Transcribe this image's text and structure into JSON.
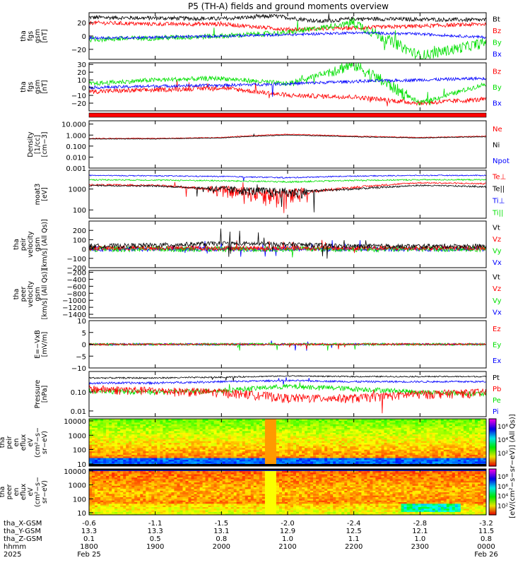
{
  "title": "P5 (TH-A) fields and ground moments overview",
  "colors": {
    "black": "#000000",
    "red": "#ff0000",
    "green": "#00e000",
    "blue": "#0000ff"
  },
  "panels": [
    {
      "id": "fgs1",
      "ylabel": [
        "tha",
        "fgs",
        "gsm",
        "[nT]"
      ],
      "ticks": [
        "20",
        "0",
        "−20"
      ],
      "legend": [
        {
          "text": "Bt",
          "color": "black"
        },
        {
          "text": "Bz",
          "color": "red"
        },
        {
          "text": "By",
          "color": "green"
        },
        {
          "text": "Bx",
          "color": "blue"
        }
      ]
    },
    {
      "id": "fgs2",
      "ylabel": [
        "tha",
        "fgs",
        "gsm",
        "[nT]"
      ],
      "ticks": [
        "30",
        "20",
        "10",
        "0",
        "−10",
        "−20"
      ],
      "legend": [
        {
          "text": "Bz",
          "color": "red"
        },
        {
          "text": "By",
          "color": "green"
        },
        {
          "text": "Bx",
          "color": "blue"
        }
      ]
    },
    {
      "id": "density",
      "ylabel": [
        "Density",
        "[1/cc]",
        "[cm−3]"
      ],
      "ticks": [
        "10.000",
        "1.000",
        "0.100",
        "0.010",
        "0.001"
      ],
      "legend": [
        {
          "text": "Ne",
          "color": "red"
        },
        {
          "text": "Ni",
          "color": "black"
        },
        {
          "text": "Npot",
          "color": "blue"
        }
      ]
    },
    {
      "id": "temp",
      "ylabel": [
        "moat3",
        "[eV]"
      ],
      "ticks": [
        "1000",
        "100"
      ],
      "legend": [
        {
          "text": "Te⊥",
          "color": "red"
        },
        {
          "text": "Te||",
          "color": "black"
        },
        {
          "text": "Ti⊥",
          "color": "blue"
        },
        {
          "text": "Ti||",
          "color": "green"
        }
      ]
    },
    {
      "id": "vel1",
      "ylabel": [
        "tha",
        "peir",
        "velocity",
        "gsm",
        "[km/s] (All Qs)]"
      ],
      "ticks": [
        "200",
        "100",
        "0",
        "−100",
        "−200"
      ],
      "legend": [
        {
          "text": "Vt",
          "color": "black"
        },
        {
          "text": "Vz",
          "color": "red"
        },
        {
          "text": "Vy",
          "color": "green"
        },
        {
          "text": "Vx",
          "color": "blue"
        }
      ]
    },
    {
      "id": "vel2",
      "ylabel": [
        "tha",
        "peer",
        "velocity",
        "gsm",
        "[km/s] (All Qs)]"
      ],
      "ticks": [
        "−200",
        "−400",
        "−600",
        "−800",
        "−1000",
        "−1200",
        "−1400"
      ],
      "legend": [
        {
          "text": "Vt",
          "color": "black"
        },
        {
          "text": "Vz",
          "color": "red"
        },
        {
          "text": "Vy",
          "color": "green"
        },
        {
          "text": "Vx",
          "color": "blue"
        }
      ]
    },
    {
      "id": "efield",
      "ylabel": [
        "E=−VxB",
        "[mV/m]"
      ],
      "ticks": [
        "10",
        "5",
        "0",
        "−5",
        "−10"
      ],
      "legend": [
        {
          "text": "Ez",
          "color": "red"
        },
        {
          "text": "Ey",
          "color": "green"
        },
        {
          "text": "Ex",
          "color": "blue"
        }
      ]
    },
    {
      "id": "pressure",
      "ylabel": [
        "Pressure",
        "[nPa]"
      ],
      "ticks": [
        "0.10",
        "0.01"
      ],
      "legend": [
        {
          "text": "Pt",
          "color": "black"
        },
        {
          "text": "Pb",
          "color": "red"
        },
        {
          "text": "Pe",
          "color": "green"
        },
        {
          "text": "Pi",
          "color": "blue"
        }
      ]
    },
    {
      "id": "peir_en",
      "ylabel": [
        "tha",
        "peir",
        "en",
        "eflux",
        "eV",
        "(cm²−s−",
        "sr−eV)"
      ],
      "ticks": [
        "10000",
        "1000",
        "100",
        "10"
      ]
    },
    {
      "id": "peer_en",
      "ylabel": [
        "tha",
        "peer",
        "en",
        "eflux",
        "eV",
        "(cm²−s−",
        "sr−eV)"
      ],
      "ticks": [
        "10000",
        "1000",
        "100",
        "10"
      ]
    }
  ],
  "colorbar": {
    "label": "[eV/(cm²−s−sr−eV)] (All Qs)]",
    "ticks_top": [
      "10⁶",
      "10⁴",
      "10²"
    ],
    "ticks_bottom": [
      "10⁸",
      "10⁶",
      "10⁴",
      "10²"
    ]
  },
  "footer": {
    "row_labels": [
      "tha_X-GSM",
      "tha_Y-GSM",
      "tha_Z-GSM",
      "hhmm",
      "2025"
    ],
    "columns": [
      {
        "x": "-0.6",
        "y": "13.3",
        "z": "0.1",
        "t": "1800",
        "d": "Feb 25"
      },
      {
        "x": "-1.1",
        "y": "13.3",
        "z": "0.5",
        "t": "1900",
        "d": ""
      },
      {
        "x": "-1.5",
        "y": "13.1",
        "z": "0.8",
        "t": "2000",
        "d": ""
      },
      {
        "x": "-2.0",
        "y": "12.9",
        "z": "1.0",
        "t": "2100",
        "d": ""
      },
      {
        "x": "-2.4",
        "y": "12.5",
        "z": "1.1",
        "t": "2200",
        "d": ""
      },
      {
        "x": "-2.8",
        "y": "12.1",
        "z": "1.0",
        "t": "2300",
        "d": ""
      },
      {
        "x": "-3.2",
        "y": "11.5",
        "z": "0.8",
        "t": "0000",
        "d": "Feb 26"
      }
    ]
  },
  "chart_data": {
    "type": "line",
    "title": "P5 (TH-A) fields and ground moments overview",
    "x_time_range": [
      "2025-02-25 18:00",
      "2025-02-26 00:00"
    ],
    "panels": [
      {
        "name": "tha fgs gsm [nT]",
        "ylim": [
          -35,
          35
        ],
        "series": [
          {
            "name": "Bt",
            "approx": [
              [
                18.0,
                28
              ],
              [
                19.0,
                27
              ],
              [
                20.0,
                26
              ],
              [
                20.8,
                30
              ],
              [
                21.5,
                22
              ],
              [
                22.0,
                26
              ],
              [
                23.0,
                25
              ],
              [
                24.0,
                24
              ]
            ]
          },
          {
            "name": "Bz",
            "approx": [
              [
                18.0,
                20
              ],
              [
                19.0,
                18
              ],
              [
                20.0,
                18
              ],
              [
                21.0,
                10
              ],
              [
                22.0,
                12
              ],
              [
                23.0,
                15
              ],
              [
                24.0,
                18
              ]
            ]
          },
          {
            "name": "By",
            "approx": [
              [
                18.0,
                -5
              ],
              [
                19.0,
                -3
              ],
              [
                20.0,
                0
              ],
              [
                21.0,
                5
              ],
              [
                22.0,
                20
              ],
              [
                22.6,
                -10
              ],
              [
                23.0,
                -30
              ],
              [
                24.0,
                -10
              ]
            ]
          },
          {
            "name": "Bx",
            "approx": [
              [
                18.0,
                -3
              ],
              [
                19.0,
                -2
              ],
              [
                20.0,
                0
              ],
              [
                21.0,
                2
              ],
              [
                22.0,
                5
              ],
              [
                23.0,
                3
              ],
              [
                24.0,
                -2
              ]
            ]
          }
        ]
      },
      {
        "name": "tha fgs gsm [nT]",
        "ylim": [
          -30,
          32
        ],
        "series": [
          {
            "name": "Bz",
            "approx": [
              [
                18.0,
                -5
              ],
              [
                19.0,
                -3
              ],
              [
                20.0,
                0
              ],
              [
                21.0,
                -10
              ],
              [
                22.0,
                -12
              ],
              [
                23.0,
                -20
              ],
              [
                24.0,
                -15
              ]
            ]
          },
          {
            "name": "By",
            "approx": [
              [
                18.0,
                5
              ],
              [
                19.0,
                10
              ],
              [
                20.0,
                12
              ],
              [
                21.0,
                5
              ],
              [
                22.0,
                30
              ],
              [
                23.0,
                -20
              ],
              [
                24.0,
                5
              ]
            ]
          },
          {
            "name": "Bx",
            "approx": [
              [
                18.0,
                0
              ],
              [
                19.0,
                2
              ],
              [
                20.0,
                3
              ],
              [
                21.0,
                5
              ],
              [
                22.0,
                8
              ],
              [
                23.0,
                10
              ],
              [
                24.0,
                12
              ]
            ]
          }
        ]
      },
      {
        "name": "Density [1/cc]",
        "scale": "log",
        "ylim": [
          0.001,
          20
        ],
        "series": [
          {
            "name": "Ne",
            "approx": [
              [
                18.0,
                0.5
              ],
              [
                19.0,
                0.5
              ],
              [
                20.0,
                0.6
              ],
              [
                21.0,
                1.2
              ],
              [
                22.0,
                0.8
              ],
              [
                23.0,
                0.6
              ],
              [
                24.0,
                0.8
              ]
            ]
          },
          {
            "name": "Ni",
            "approx": [
              [
                18.0,
                0.45
              ],
              [
                19.0,
                0.45
              ],
              [
                20.0,
                0.55
              ],
              [
                21.0,
                1.0
              ],
              [
                22.0,
                0.7
              ],
              [
                23.0,
                0.55
              ],
              [
                24.0,
                0.7
              ]
            ]
          }
        ]
      },
      {
        "name": "moat3 [eV]",
        "scale": "log",
        "ylim": [
          40,
          8000
        ],
        "series": [
          {
            "name": "Te||",
            "approx": [
              [
                18.0,
                1500
              ],
              [
                19.0,
                1400
              ],
              [
                20.0,
                1000
              ],
              [
                21.0,
                700
              ],
              [
                22.0,
                1000
              ],
              [
                23.0,
                1500
              ],
              [
                24.0,
                1300
              ]
            ]
          },
          {
            "name": "Te⊥",
            "approx": [
              [
                18.0,
                1600
              ],
              [
                19.0,
                1500
              ],
              [
                20.0,
                900
              ],
              [
                21.0,
                500
              ],
              [
                22.0,
                1200
              ],
              [
                23.0,
                2000
              ],
              [
                24.0,
                1800
              ]
            ]
          },
          {
            "name": "Ti⊥",
            "approx": [
              [
                18.0,
                4500
              ],
              [
                19.0,
                4300
              ],
              [
                20.0,
                4000
              ],
              [
                21.0,
                3500
              ],
              [
                22.0,
                4200
              ],
              [
                23.0,
                4500
              ],
              [
                24.0,
                4500
              ]
            ]
          },
          {
            "name": "Ti||",
            "approx": [
              [
                18.0,
                2800
              ],
              [
                19.0,
                2700
              ],
              [
                20.0,
                2500
              ],
              [
                21.0,
                2200
              ],
              [
                22.0,
                2600
              ],
              [
                23.0,
                2800
              ],
              [
                24.0,
                2800
              ]
            ]
          }
        ]
      },
      {
        "name": "tha peir velocity gsm [km/s]",
        "ylim": [
          -200,
          300
        ],
        "series": [
          {
            "name": "Vt",
            "approx": [
              [
                18.0,
                30
              ],
              [
                19.0,
                40
              ],
              [
                20.0,
                60
              ],
              [
                21.0,
                50
              ],
              [
                22.0,
                30
              ],
              [
                23.0,
                30
              ],
              [
                24.0,
                30
              ]
            ]
          }
        ]
      },
      {
        "name": "tha peer velocity gsm [km/s]",
        "ylim": [
          -1500,
          -150
        ],
        "series": []
      },
      {
        "name": "E=-VxB [mV/m]",
        "ylim": [
          -10,
          10
        ],
        "series": []
      },
      {
        "name": "Pressure [nPa]",
        "scale": "log",
        "ylim": [
          0.005,
          1.2
        ],
        "series": [
          {
            "name": "Pt",
            "approx": [
              [
                18.0,
                0.55
              ],
              [
                19.0,
                0.55
              ],
              [
                20.0,
                0.6
              ],
              [
                21.0,
                0.7
              ],
              [
                22.0,
                0.65
              ],
              [
                23.0,
                0.65
              ],
              [
                24.0,
                0.65
              ]
            ]
          },
          {
            "name": "Pb",
            "approx": [
              [
                18.0,
                0.15
              ],
              [
                19.0,
                0.12
              ],
              [
                20.0,
                0.1
              ],
              [
                21.0,
                0.05
              ],
              [
                22.0,
                0.05
              ],
              [
                23.0,
                0.08
              ],
              [
                24.0,
                0.1
              ]
            ]
          },
          {
            "name": "Pe",
            "approx": [
              [
                18.0,
                0.12
              ],
              [
                19.0,
                0.1
              ],
              [
                20.0,
                0.12
              ],
              [
                21.0,
                0.2
              ],
              [
                22.0,
                0.15
              ],
              [
                23.0,
                0.1
              ],
              [
                24.0,
                0.08
              ]
            ]
          },
          {
            "name": "Pi",
            "approx": [
              [
                18.0,
                0.3
              ],
              [
                19.0,
                0.3
              ],
              [
                20.0,
                0.35
              ],
              [
                21.0,
                0.4
              ],
              [
                22.0,
                0.35
              ],
              [
                23.0,
                0.35
              ],
              [
                24.0,
                0.35
              ]
            ]
          }
        ]
      }
    ]
  }
}
